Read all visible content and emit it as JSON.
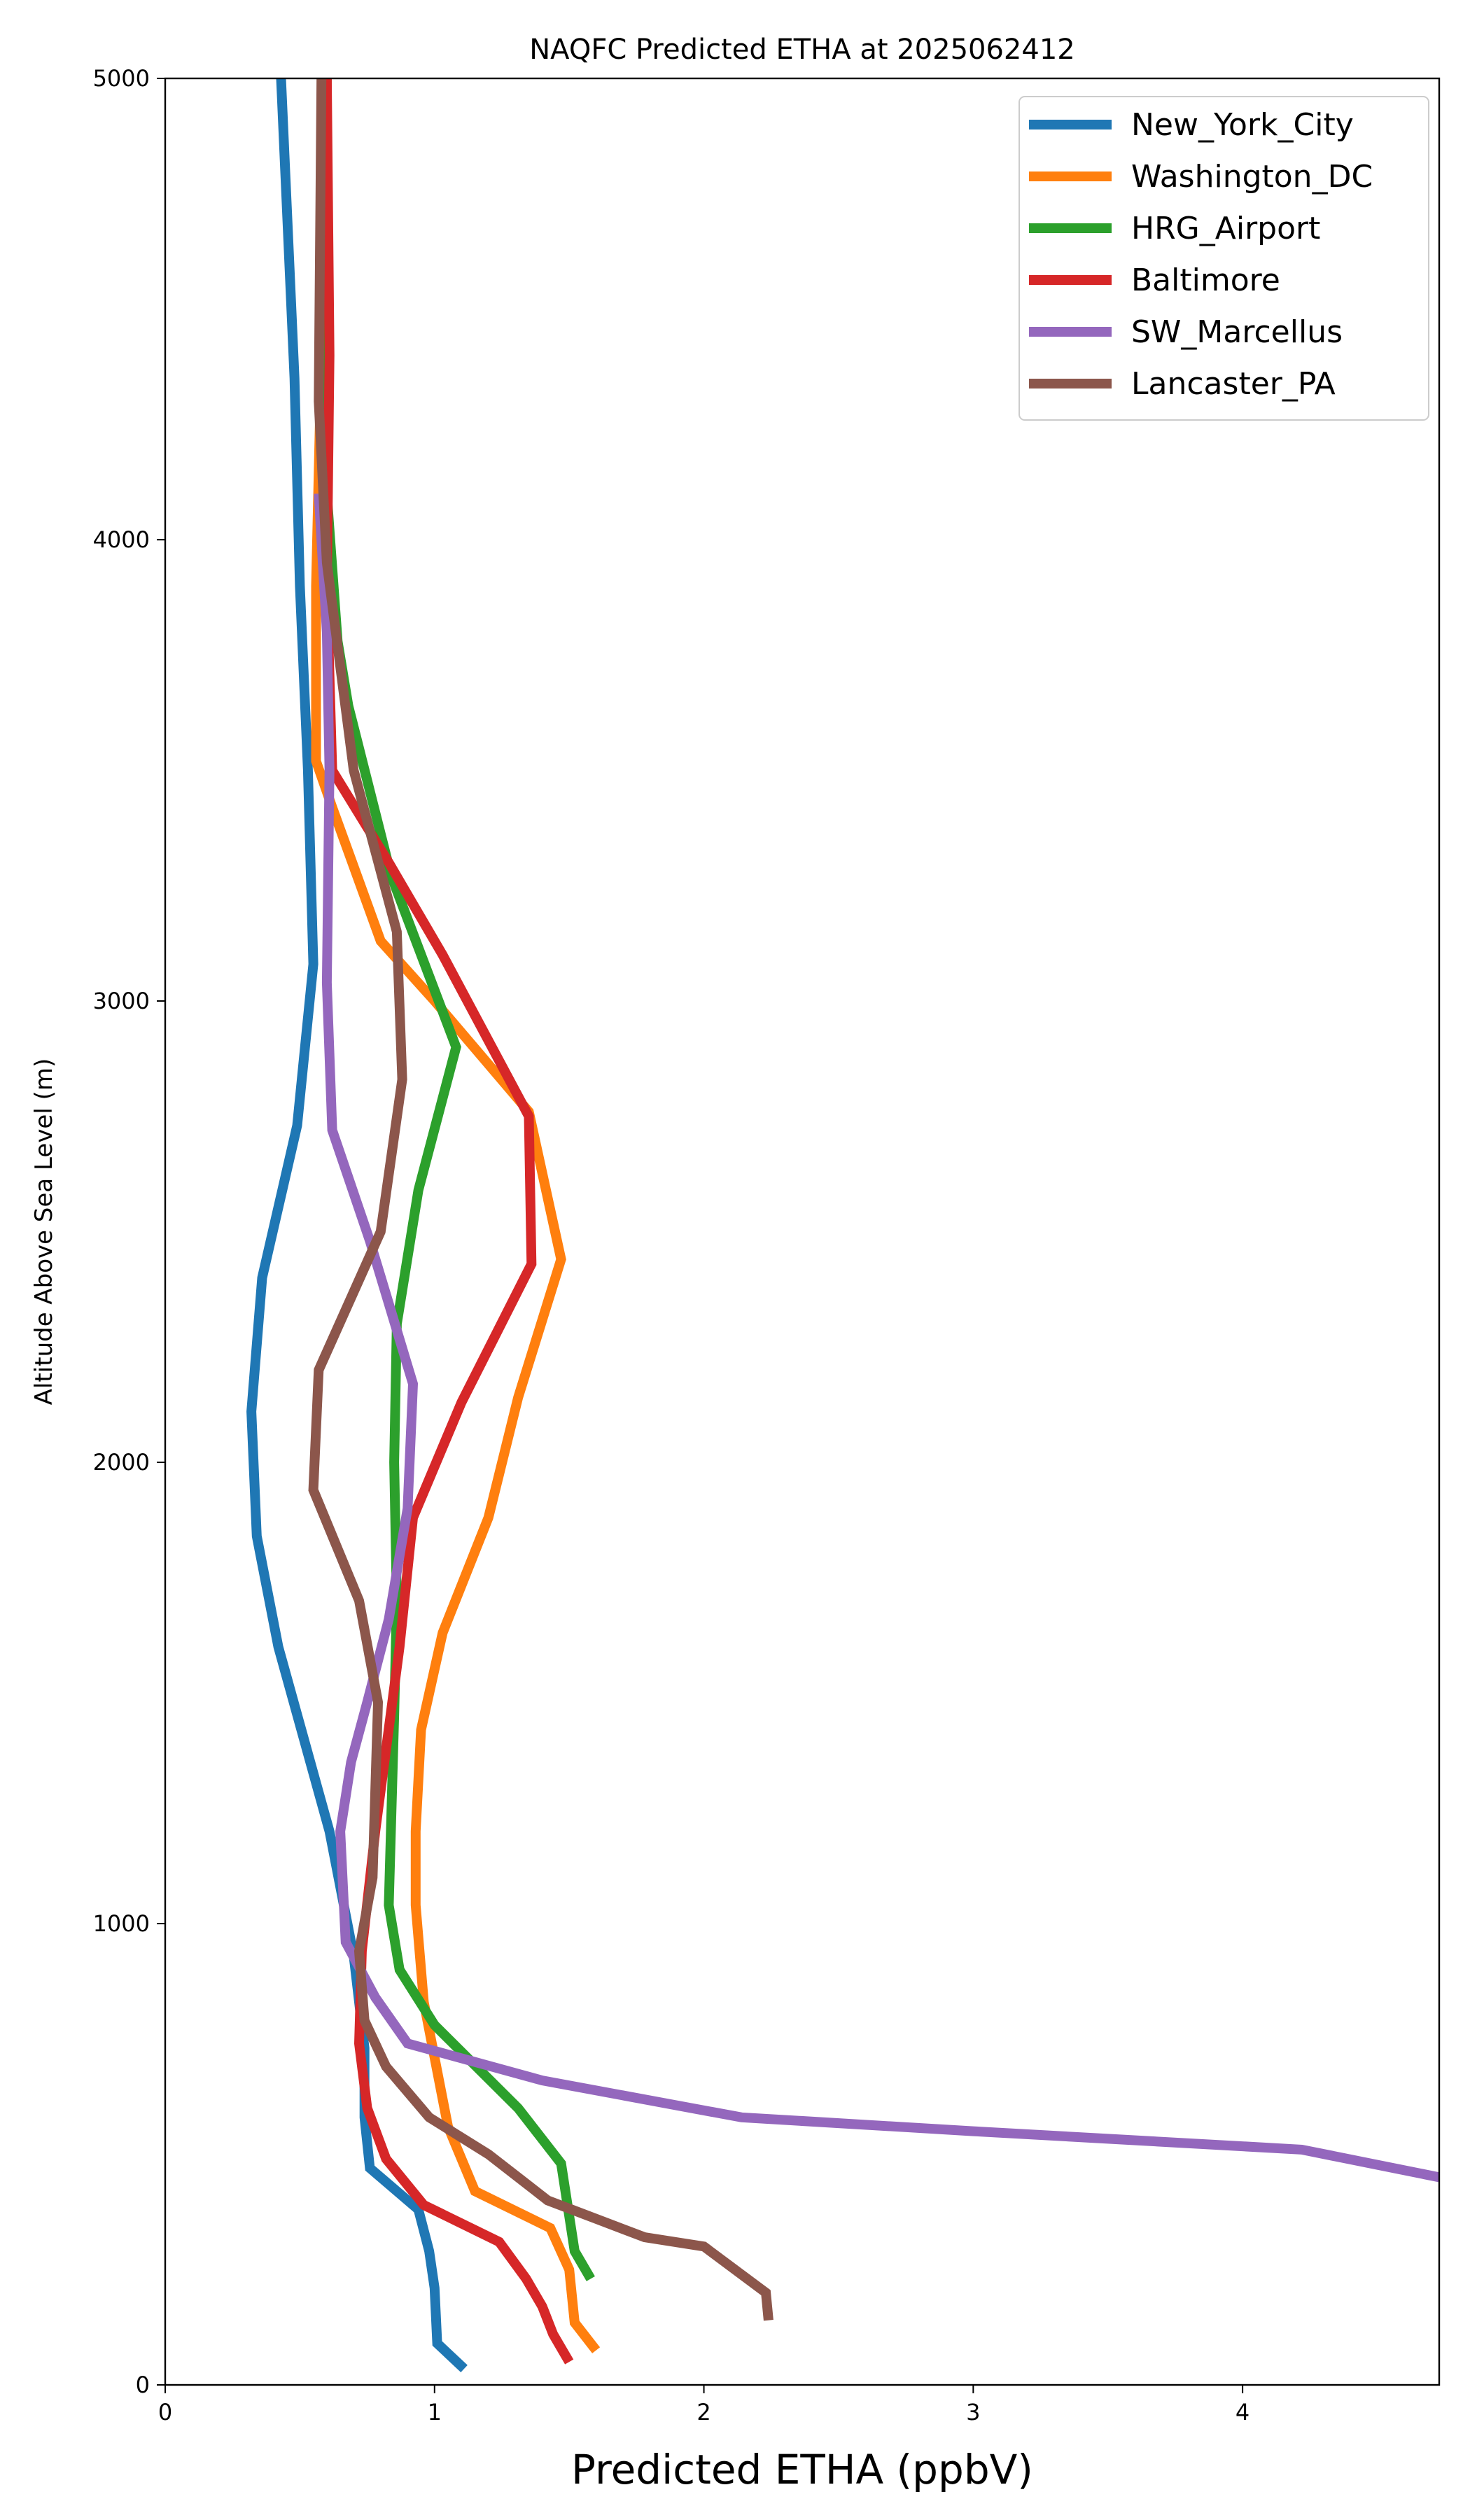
{
  "chart_data": {
    "type": "line",
    "title": "NAQFC Predicted ETHA at 2025062412",
    "xlabel": "Predicted ETHA (ppbV)",
    "ylabel": "Altitude Above Sea Level (m)",
    "xlim": [
      0,
      4.73
    ],
    "ylim": [
      0,
      5000
    ],
    "xticks": [
      0,
      1,
      2,
      3,
      4
    ],
    "yticks": [
      0,
      1000,
      2000,
      3000,
      4000,
      5000
    ],
    "grid": false,
    "legend_position": "top-right",
    "series": [
      {
        "name": "New_York_City",
        "color": "#1f77b4",
        "points": [
          [
            1.11,
            35
          ],
          [
            1.01,
            90
          ],
          [
            1.0,
            210
          ],
          [
            0.98,
            290
          ],
          [
            0.94,
            380
          ],
          [
            0.76,
            470
          ],
          [
            0.74,
            580
          ],
          [
            0.74,
            730
          ],
          [
            0.7,
            930
          ],
          [
            0.61,
            1200
          ],
          [
            0.42,
            1600
          ],
          [
            0.34,
            1840
          ],
          [
            0.32,
            2110
          ],
          [
            0.36,
            2400
          ],
          [
            0.49,
            2730
          ],
          [
            0.55,
            3080
          ],
          [
            0.53,
            3500
          ],
          [
            0.5,
            3900
          ],
          [
            0.48,
            4350
          ],
          [
            0.43,
            5000
          ]
        ]
      },
      {
        "name": "Washington_DC",
        "color": "#ff7f0e",
        "points": [
          [
            1.6,
            75
          ],
          [
            1.52,
            135
          ],
          [
            1.5,
            250
          ],
          [
            1.43,
            340
          ],
          [
            1.15,
            420
          ],
          [
            1.05,
            560
          ],
          [
            0.96,
            830
          ],
          [
            0.93,
            1040
          ],
          [
            0.93,
            1200
          ],
          [
            0.95,
            1420
          ],
          [
            1.03,
            1630
          ],
          [
            1.2,
            1880
          ],
          [
            1.31,
            2140
          ],
          [
            1.47,
            2440
          ],
          [
            1.35,
            2760
          ],
          [
            1.0,
            3000
          ],
          [
            0.8,
            3130
          ],
          [
            0.62,
            3420
          ],
          [
            0.56,
            3520
          ],
          [
            0.56,
            3900
          ],
          [
            0.58,
            4400
          ],
          [
            0.6,
            5000
          ]
        ]
      },
      {
        "name": "HRG_Airport",
        "color": "#2ca02c",
        "points": [
          [
            1.58,
            230
          ],
          [
            1.52,
            290
          ],
          [
            1.47,
            480
          ],
          [
            1.31,
            600
          ],
          [
            1.0,
            780
          ],
          [
            0.87,
            900
          ],
          [
            0.83,
            1040
          ],
          [
            0.85,
            1450
          ],
          [
            0.86,
            1700
          ],
          [
            0.85,
            2000
          ],
          [
            0.86,
            2300
          ],
          [
            0.94,
            2590
          ],
          [
            1.08,
            2900
          ],
          [
            0.84,
            3270
          ],
          [
            0.68,
            3640
          ],
          [
            0.64,
            3780
          ],
          [
            0.6,
            4100
          ],
          [
            0.59,
            4500
          ],
          [
            0.6,
            5000
          ]
        ]
      },
      {
        "name": "Baltimore",
        "color": "#d62728",
        "points": [
          [
            1.5,
            50
          ],
          [
            1.44,
            110
          ],
          [
            1.4,
            170
          ],
          [
            1.34,
            230
          ],
          [
            1.24,
            310
          ],
          [
            0.96,
            390
          ],
          [
            0.82,
            490
          ],
          [
            0.75,
            600
          ],
          [
            0.72,
            740
          ],
          [
            0.73,
            940
          ],
          [
            0.78,
            1200
          ],
          [
            0.87,
            1600
          ],
          [
            0.92,
            1880
          ],
          [
            1.1,
            2130
          ],
          [
            1.36,
            2430
          ],
          [
            1.35,
            2750
          ],
          [
            1.03,
            3100
          ],
          [
            0.83,
            3300
          ],
          [
            0.62,
            3500
          ],
          [
            0.6,
            3900
          ],
          [
            0.61,
            4400
          ],
          [
            0.6,
            5000
          ]
        ]
      },
      {
        "name": "SW_Marcellus",
        "color": "#9467bd",
        "points": [
          [
            4.73,
            450
          ],
          [
            4.22,
            510
          ],
          [
            3.0,
            550
          ],
          [
            2.14,
            580
          ],
          [
            1.4,
            660
          ],
          [
            0.9,
            740
          ],
          [
            0.78,
            840
          ],
          [
            0.67,
            960
          ],
          [
            0.65,
            1200
          ],
          [
            0.69,
            1350
          ],
          [
            0.75,
            1480
          ],
          [
            0.83,
            1660
          ],
          [
            0.9,
            1900
          ],
          [
            0.92,
            2170
          ],
          [
            0.76,
            2480
          ],
          [
            0.62,
            2720
          ],
          [
            0.6,
            3040
          ],
          [
            0.61,
            3500
          ],
          [
            0.6,
            3800
          ],
          [
            0.57,
            4100
          ]
        ]
      },
      {
        "name": "Lancaster_PA",
        "color": "#8c564b",
        "points": [
          [
            2.24,
            140
          ],
          [
            2.23,
            200
          ],
          [
            2.0,
            300
          ],
          [
            1.78,
            320
          ],
          [
            1.42,
            400
          ],
          [
            1.2,
            500
          ],
          [
            0.98,
            580
          ],
          [
            0.82,
            690
          ],
          [
            0.74,
            790
          ],
          [
            0.72,
            940
          ],
          [
            0.77,
            1100
          ],
          [
            0.79,
            1480
          ],
          [
            0.72,
            1700
          ],
          [
            0.55,
            1940
          ],
          [
            0.57,
            2200
          ],
          [
            0.8,
            2500
          ],
          [
            0.88,
            2830
          ],
          [
            0.86,
            3150
          ],
          [
            0.7,
            3500
          ],
          [
            0.6,
            3950
          ],
          [
            0.57,
            4300
          ],
          [
            0.58,
            5000
          ]
        ]
      }
    ]
  }
}
